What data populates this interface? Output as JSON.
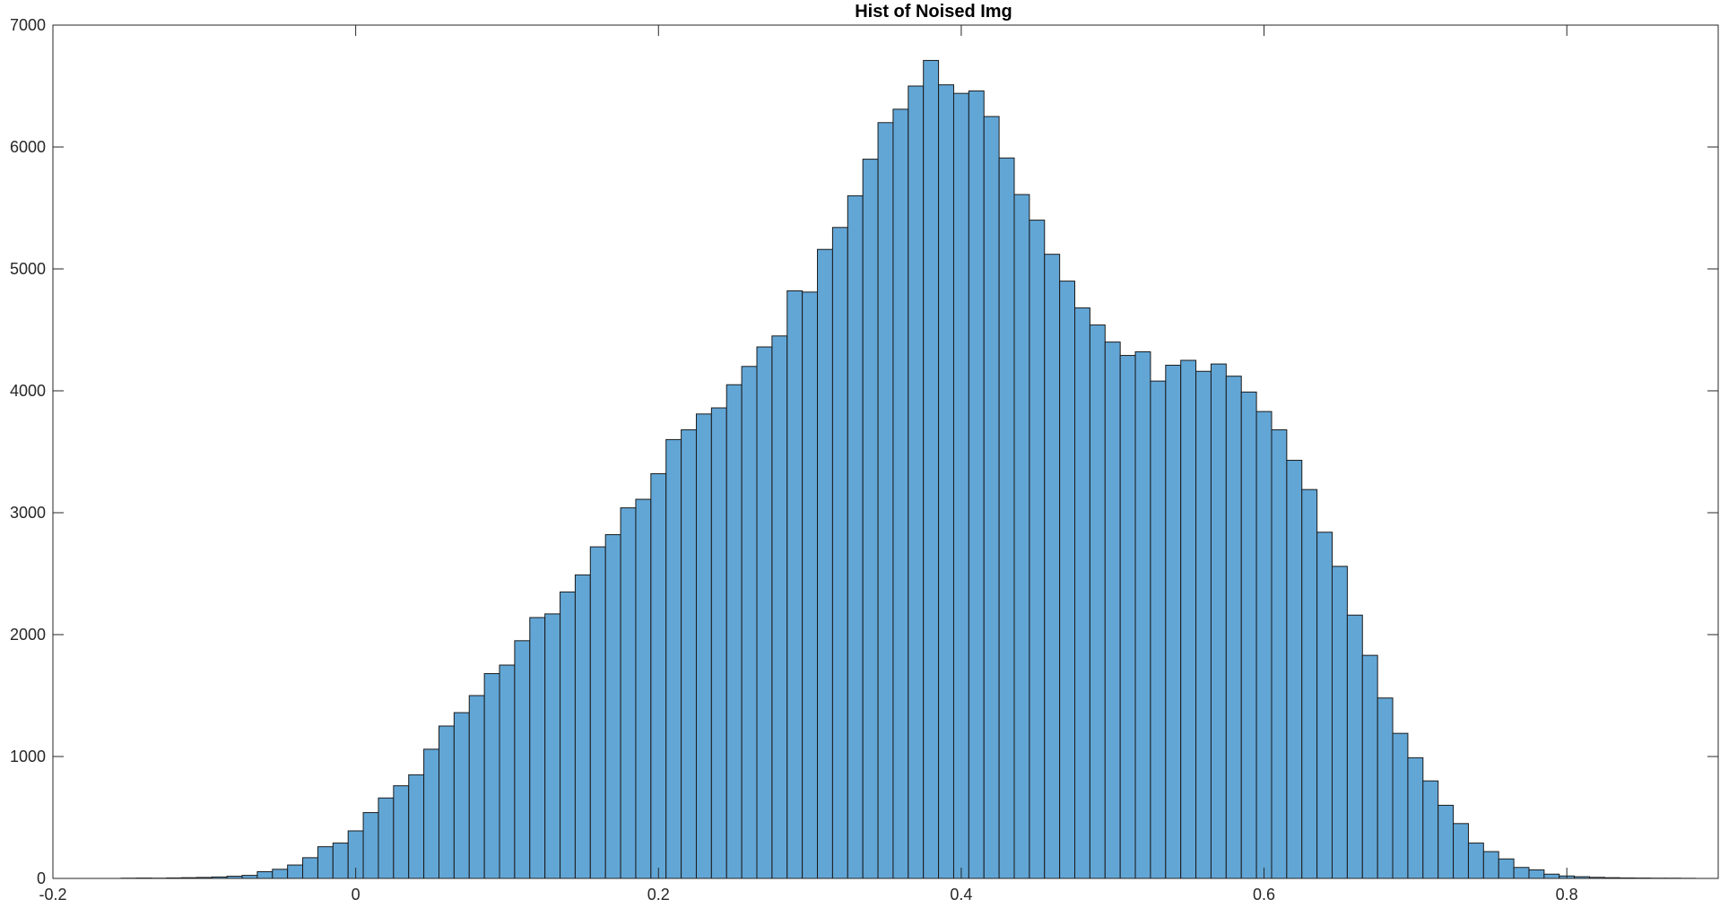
{
  "chart_data": {
    "type": "bar",
    "subtype": "histogram",
    "title": "Hist of Noised Img",
    "xlabel": "",
    "ylabel": "",
    "xlim": [
      -0.2,
      0.9
    ],
    "ylim": [
      0,
      7000
    ],
    "bin_width": 0.01,
    "x_ticks": [
      "-0.2",
      "0",
      "0.2",
      "0.4",
      "0.6",
      "0.8"
    ],
    "x_tick_values": [
      -0.2,
      0,
      0.2,
      0.4,
      0.6,
      0.8
    ],
    "y_ticks": [
      "0",
      "1000",
      "2000",
      "3000",
      "4000",
      "5000",
      "6000",
      "7000"
    ],
    "y_tick_values": [
      0,
      1000,
      2000,
      3000,
      4000,
      5000,
      6000,
      7000
    ],
    "grid": false,
    "legend": "none",
    "colors": {
      "bar_fill": "#62A6D6",
      "bar_edge": "#1A1A1A",
      "axis": "#262626"
    },
    "bins": [
      {
        "x": -0.15,
        "y": 2
      },
      {
        "x": -0.14,
        "y": 3
      },
      {
        "x": -0.13,
        "y": 2
      },
      {
        "x": -0.12,
        "y": 4
      },
      {
        "x": -0.11,
        "y": 6
      },
      {
        "x": -0.1,
        "y": 8
      },
      {
        "x": -0.09,
        "y": 12
      },
      {
        "x": -0.08,
        "y": 18
      },
      {
        "x": -0.07,
        "y": 25
      },
      {
        "x": -0.06,
        "y": 55
      },
      {
        "x": -0.05,
        "y": 75
      },
      {
        "x": -0.04,
        "y": 110
      },
      {
        "x": -0.03,
        "y": 170
      },
      {
        "x": -0.02,
        "y": 260
      },
      {
        "x": -0.01,
        "y": 290
      },
      {
        "x": 0.0,
        "y": 390
      },
      {
        "x": 0.01,
        "y": 540
      },
      {
        "x": 0.02,
        "y": 660
      },
      {
        "x": 0.03,
        "y": 760
      },
      {
        "x": 0.04,
        "y": 850
      },
      {
        "x": 0.05,
        "y": 1060
      },
      {
        "x": 0.06,
        "y": 1250
      },
      {
        "x": 0.07,
        "y": 1360
      },
      {
        "x": 0.08,
        "y": 1500
      },
      {
        "x": 0.09,
        "y": 1680
      },
      {
        "x": 0.1,
        "y": 1750
      },
      {
        "x": 0.11,
        "y": 1950
      },
      {
        "x": 0.12,
        "y": 2140
      },
      {
        "x": 0.13,
        "y": 2170
      },
      {
        "x": 0.14,
        "y": 2350
      },
      {
        "x": 0.15,
        "y": 2490
      },
      {
        "x": 0.16,
        "y": 2720
      },
      {
        "x": 0.17,
        "y": 2820
      },
      {
        "x": 0.18,
        "y": 3040
      },
      {
        "x": 0.19,
        "y": 3110
      },
      {
        "x": 0.2,
        "y": 3320
      },
      {
        "x": 0.21,
        "y": 3600
      },
      {
        "x": 0.22,
        "y": 3680
      },
      {
        "x": 0.23,
        "y": 3810
      },
      {
        "x": 0.24,
        "y": 3860
      },
      {
        "x": 0.25,
        "y": 4050
      },
      {
        "x": 0.26,
        "y": 4200
      },
      {
        "x": 0.27,
        "y": 4360
      },
      {
        "x": 0.28,
        "y": 4450
      },
      {
        "x": 0.29,
        "y": 4820
      },
      {
        "x": 0.3,
        "y": 4810
      },
      {
        "x": 0.31,
        "y": 5160
      },
      {
        "x": 0.32,
        "y": 5340
      },
      {
        "x": 0.33,
        "y": 5600
      },
      {
        "x": 0.34,
        "y": 5900
      },
      {
        "x": 0.35,
        "y": 6200
      },
      {
        "x": 0.36,
        "y": 6310
      },
      {
        "x": 0.37,
        "y": 6500
      },
      {
        "x": 0.38,
        "y": 6710
      },
      {
        "x": 0.39,
        "y": 6510
      },
      {
        "x": 0.4,
        "y": 6440
      },
      {
        "x": 0.41,
        "y": 6460
      },
      {
        "x": 0.42,
        "y": 6250
      },
      {
        "x": 0.43,
        "y": 5910
      },
      {
        "x": 0.44,
        "y": 5610
      },
      {
        "x": 0.45,
        "y": 5400
      },
      {
        "x": 0.46,
        "y": 5120
      },
      {
        "x": 0.47,
        "y": 4900
      },
      {
        "x": 0.48,
        "y": 4680
      },
      {
        "x": 0.49,
        "y": 4540
      },
      {
        "x": 0.5,
        "y": 4400
      },
      {
        "x": 0.51,
        "y": 4290
      },
      {
        "x": 0.52,
        "y": 4320
      },
      {
        "x": 0.53,
        "y": 4080
      },
      {
        "x": 0.54,
        "y": 4210
      },
      {
        "x": 0.55,
        "y": 4250
      },
      {
        "x": 0.56,
        "y": 4160
      },
      {
        "x": 0.57,
        "y": 4220
      },
      {
        "x": 0.58,
        "y": 4120
      },
      {
        "x": 0.59,
        "y": 3990
      },
      {
        "x": 0.6,
        "y": 3830
      },
      {
        "x": 0.61,
        "y": 3680
      },
      {
        "x": 0.62,
        "y": 3430
      },
      {
        "x": 0.63,
        "y": 3190
      },
      {
        "x": 0.64,
        "y": 2840
      },
      {
        "x": 0.65,
        "y": 2560
      },
      {
        "x": 0.66,
        "y": 2160
      },
      {
        "x": 0.67,
        "y": 1830
      },
      {
        "x": 0.68,
        "y": 1480
      },
      {
        "x": 0.69,
        "y": 1190
      },
      {
        "x": 0.7,
        "y": 990
      },
      {
        "x": 0.71,
        "y": 800
      },
      {
        "x": 0.72,
        "y": 600
      },
      {
        "x": 0.73,
        "y": 450
      },
      {
        "x": 0.74,
        "y": 290
      },
      {
        "x": 0.75,
        "y": 220
      },
      {
        "x": 0.76,
        "y": 160
      },
      {
        "x": 0.77,
        "y": 90
      },
      {
        "x": 0.78,
        "y": 70
      },
      {
        "x": 0.79,
        "y": 35
      },
      {
        "x": 0.8,
        "y": 20
      },
      {
        "x": 0.81,
        "y": 14
      },
      {
        "x": 0.82,
        "y": 9
      },
      {
        "x": 0.83,
        "y": 6
      },
      {
        "x": 0.84,
        "y": 4
      },
      {
        "x": 0.85,
        "y": 3
      },
      {
        "x": 0.86,
        "y": 2
      },
      {
        "x": 0.87,
        "y": 2
      },
      {
        "x": 0.88,
        "y": 1
      }
    ]
  }
}
